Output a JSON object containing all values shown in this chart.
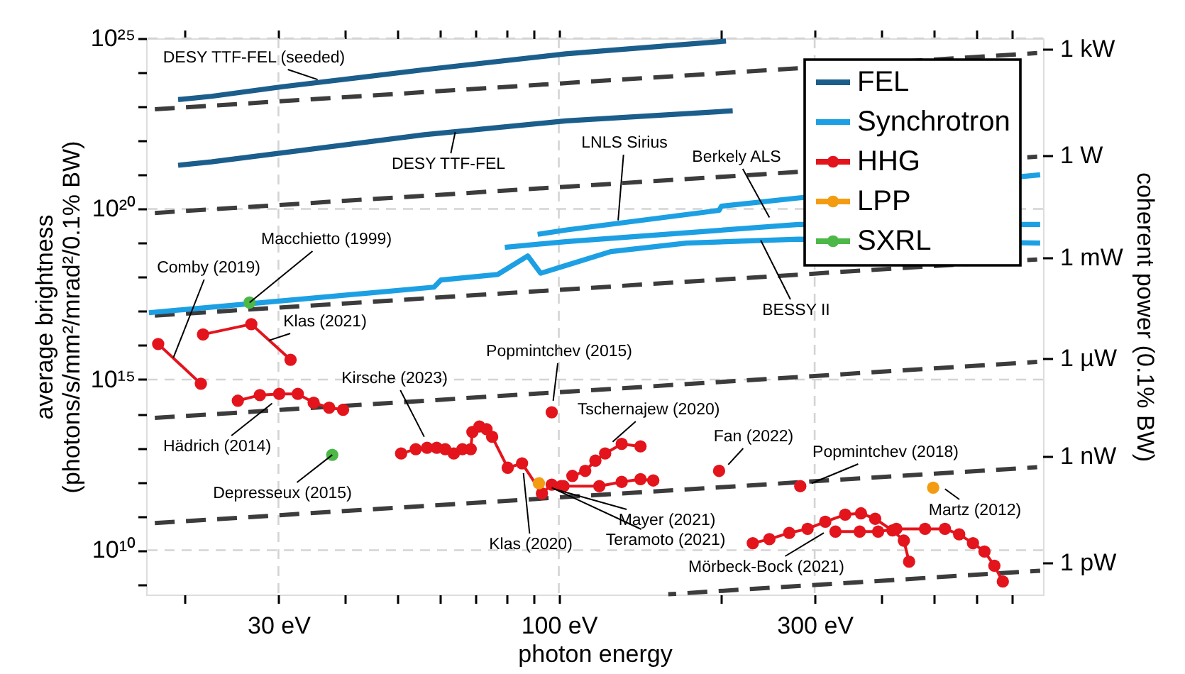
{
  "chart_data": {
    "type": "line",
    "xlabel": "photon energy",
    "ylabel": "average brightness\n(photons/s/mm²/mrad²/0.1% BW)",
    "y2label": "coherent power (0.1% BW)",
    "log": "xy",
    "grid": true,
    "legend": "top right",
    "xlim": [
      17,
      800
    ],
    "ylim": [
      500000000.0,
      1e+25
    ],
    "xticks": [
      {
        "value": 20,
        "label": null
      },
      {
        "value": 30,
        "label": "30 eV"
      },
      {
        "value": 40,
        "label": null
      },
      {
        "value": 50,
        "label": null
      },
      {
        "value": 60,
        "label": null
      },
      {
        "value": 70,
        "label": null
      },
      {
        "value": 80,
        "label": null
      },
      {
        "value": 90,
        "label": null
      },
      {
        "value": 100,
        "label": "100 eV"
      },
      {
        "value": 200,
        "label": null
      },
      {
        "value": 300,
        "label": "300 eV"
      },
      {
        "value": 400,
        "label": null
      },
      {
        "value": 500,
        "label": null
      },
      {
        "value": 600,
        "label": null
      },
      {
        "value": 700,
        "label": null
      }
    ],
    "yticks": [
      {
        "value": 1000000000.0,
        "label": null
      },
      {
        "value": 10000000000.0,
        "label": "10¹⁰"
      },
      {
        "value": 100000000000.0,
        "label": null
      },
      {
        "value": 1000000000000.0,
        "label": null
      },
      {
        "value": 10000000000000.0,
        "label": null
      },
      {
        "value": 100000000000000.0,
        "label": null
      },
      {
        "value": 1000000000000000.0,
        "label": "10¹⁵"
      },
      {
        "value": 1e+16,
        "label": null
      },
      {
        "value": 1e+17,
        "label": null
      },
      {
        "value": 1e+18,
        "label": null
      },
      {
        "value": 1e+19,
        "label": null
      },
      {
        "value": 1e+20,
        "label": "10²⁰"
      },
      {
        "value": 1e+21,
        "label": null
      },
      {
        "value": 1e+22,
        "label": null
      },
      {
        "value": 1e+23,
        "label": null
      },
      {
        "value": 1e+24,
        "label": null
      },
      {
        "value": 1e+25,
        "label": "10²⁵"
      }
    ],
    "series": [
      {
        "type": "line",
        "color": "#3c3c3c",
        "line_style": "dashed",
        "marker": "none",
        "x": [
          17.6,
          780
        ],
        "values": [
          8.3e+22,
          3.7e+24
        ]
      },
      {
        "type": "line",
        "color": "#3c3c3c",
        "line_style": "dashed",
        "marker": "none",
        "x": [
          17.6,
          780
        ],
        "values": [
          7.6e+19,
          3.4e+21
        ]
      },
      {
        "type": "line",
        "color": "#3c3c3c",
        "line_style": "dashed",
        "marker": "none",
        "x": [
          17.6,
          780
        ],
        "values": [
          7.5e+16,
          3.3e+18
        ]
      },
      {
        "type": "line",
        "color": "#3c3c3c",
        "line_style": "dashed",
        "marker": "none",
        "x": [
          17.6,
          780
        ],
        "values": [
          75000000000000.0,
          3300000000000000.0
        ]
      },
      {
        "type": "line",
        "color": "#3c3c3c",
        "line_style": "dashed",
        "marker": "none",
        "x": [
          17.6,
          780
        ],
        "values": [
          62000000000.0,
          2700000000000.0
        ]
      },
      {
        "type": "line",
        "color": "#3c3c3c",
        "line_style": "dashed",
        "marker": "none",
        "x": [
          160,
          790
        ],
        "values": [
          510000000.0,
          2500000000.0
        ]
      },
      {
        "name": "FEL",
        "type": "line",
        "color": "#1b5e8c",
        "line_style": "solid",
        "marker": "none",
        "x": [
          19.5,
          22.5,
          30.5,
          56.1,
          103,
          205
        ],
        "values": [
          1.6e+23,
          2e+23,
          3.8e+23,
          1.2e+24,
          3.5e+24,
          8.3e+24
        ]
      },
      {
        "type": "line",
        "color": "#1b5e8c",
        "line_style": "solid",
        "marker": "none",
        "x": [
          19.5,
          22.5,
          56.1,
          103,
          211
        ],
        "values": [
          1.9e+21,
          2.4e+21,
          1.5e+22,
          3.8e+22,
          7.5e+22
        ]
      },
      {
        "name": "Synchrotron",
        "type": "line",
        "color": "#1ca0e3",
        "line_style": "solid",
        "marker": "none",
        "x": [
          17.2,
          58.5,
          60.3,
          76.9,
          87.5,
          92.5,
          103,
          125,
          173,
          280,
          790
        ],
        "values": [
          9.1e+16,
          5.1e+17,
          8.3e+17,
          1.2e+18,
          4.2e+18,
          1.3e+18,
          2.2e+18,
          5.6e+18,
          1e+19,
          1.3e+19,
          1e+19
        ]
      },
      {
        "type": "line",
        "color": "#1ca0e3",
        "line_style": "solid",
        "marker": "none",
        "x": [
          79.3,
          103,
          280,
          790
        ],
        "values": [
          7.5e+18,
          1.1e+19,
          3.5e+19,
          3.5e+19
        ]
      },
      {
        "type": "line",
        "color": "#1ca0e3",
        "line_style": "solid",
        "marker": "none",
        "x": [
          91.3,
          103,
          199,
          201,
          280,
          790
        ],
        "values": [
          1.8e+19,
          2.4e+19,
          9.1e+19,
          1.2e+20,
          2.1e+20,
          1e+21
        ]
      },
      {
        "name": "HHG",
        "type": "line",
        "color": "#e3141c",
        "line_style": "solid",
        "marker": "circle",
        "x": [
          17.9,
          21.5
        ],
        "values": [
          1.1e+16,
          750000000000000.0
        ]
      },
      {
        "type": "line",
        "color": "#e3141c",
        "line_style": "solid",
        "marker": "circle",
        "x": [
          21.7,
          26.7,
          31.6
        ],
        "values": [
          2.1e+16,
          4.2e+16,
          3800000000000000.0
        ]
      },
      {
        "type": "line",
        "color": "#e3141c",
        "line_style": "solid",
        "marker": "circle",
        "x": [
          25.2,
          27.7,
          30.1,
          32.6,
          34.9,
          37.3,
          39.6
        ],
        "values": [
          240000000000000.0,
          350000000000000.0,
          380000000000000.0,
          380000000000000.0,
          210000000000000.0,
          150000000000000.0,
          130000000000000.0
        ]
      },
      {
        "type": "line",
        "color": "#e3141c",
        "line_style": "solid",
        "marker": "circle",
        "x": [
          50.8,
          54.1,
          56.8,
          59.2,
          61.4,
          63.7,
          66.1,
          68.5,
          69.0,
          71.1,
          73.3,
          75.1,
          80.3,
          85.4,
          93.0,
          97.0,
          101
        ],
        "values": [
          6800000000000.0,
          9100000000000.0,
          10000000000000.0,
          10000000000000.0,
          9100000000000.0,
          6800000000000.0,
          9100000000000.0,
          9100000000000.0,
          29000000000000.0,
          42000000000000.0,
          35000000000000.0,
          21000000000000.0,
          2600000000000.0,
          3500000000000.0,
          460000000000.0,
          830000000000.0,
          750000000000.0
        ]
      },
      {
        "type": "line",
        "color": "#e3141c",
        "line_style": "solid",
        "marker": "circle",
        "x": [
          106,
          112,
          117,
          122,
          131,
          142
        ],
        "values": [
          1500000000000.0,
          2100000000000.0,
          4200000000000.0,
          6800000000000.0,
          13000000000000.0,
          11000000000000.0
        ]
      },
      {
        "type": "line",
        "color": "#e3141c",
        "line_style": "solid",
        "marker": "circle",
        "x": [
          102,
          119,
          131,
          142,
          150
        ],
        "values": [
          750000000000.0,
          750000000000.0,
          1000000000000.0,
          1200000000000.0,
          1100000000000.0
        ]
      },
      {
        "type": "scatter",
        "color": "#e3141c",
        "marker": "circle",
        "x": [
          97.0,
          199,
          282
        ],
        "values": [
          110000000000000.0,
          2100000000000.0,
          750000000000.0
        ]
      },
      {
        "type": "line",
        "color": "#e3141c",
        "line_style": "solid",
        "marker": "circle",
        "x": [
          230,
          247,
          269,
          291,
          314,
          342,
          366,
          389,
          419,
          440,
          450
        ],
        "values": [
          16000000000.0,
          21000000000.0,
          32000000000.0,
          42000000000.0,
          68000000000.0,
          110000000000.0,
          120000000000.0,
          83000000000.0,
          38000000000.0,
          19000000000.0,
          4600000000.0
        ]
      },
      {
        "type": "line",
        "color": "#e3141c",
        "line_style": "solid",
        "marker": "circle",
        "x": [
          328,
          364,
          394,
          426,
          482,
          525,
          558,
          592,
          622,
          649,
          673
        ],
        "values": [
          35000000000.0,
          35000000000.0,
          35000000000.0,
          42000000000.0,
          42000000000.0,
          42000000000.0,
          29000000000.0,
          16000000000.0,
          9100000000.0,
          3500000000.0,
          1200000000.0
        ]
      },
      {
        "name": "LPP",
        "type": "scatter",
        "color": "#f39c12",
        "marker": "circle",
        "x": [
          91.8,
          499
        ],
        "values": [
          910000000000.0,
          680000000000.0
        ]
      },
      {
        "name": "SXRL",
        "type": "scatter",
        "color": "#4cb848",
        "marker": "circle",
        "x": [
          26.5,
          37.8
        ],
        "values": [
          1.8e+17,
          6200000000000.0
        ]
      }
    ],
    "annotations": [
      {
        "text": "DESY TTF-FEL (seeded)",
        "x": 35.5,
        "y": 6.2e+23
      },
      {
        "text": "DESY TTF-FEL",
        "x": 64.1,
        "y": 1.8e+22
      },
      {
        "text": "LNLS Sirius",
        "x": 129,
        "y": 4.6e+19
      },
      {
        "text": "Berkely ALS",
        "x": 247,
        "y": 5.6e+19
      },
      {
        "text": "BESSY II",
        "x": 238,
        "y": 1.2e+19
      },
      {
        "text": "Macchietto (1999)",
        "x": 26.5,
        "y": 1.8e+17
      },
      {
        "text": "Comby (2019)",
        "x": 19.1,
        "y": 4300000000000000.0
      },
      {
        "text": "Klas (2021)",
        "x": 28.8,
        "y": 1.4e+16
      },
      {
        "text": "Hädrich (2014)",
        "x": 29.2,
        "y": 200000000000000.0
      },
      {
        "text": "Depresseux (2015)",
        "x": 37.8,
        "y": 6200000000000.0
      },
      {
        "text": "Kirsche (2023)",
        "x": 56.1,
        "y": 21000000000000.0
      },
      {
        "text": "Popmintchev (2015)",
        "x": 97.6,
        "y": 240000000000000.0
      },
      {
        "text": "Tschernajew (2020)",
        "x": 126,
        "y": 15000000000000.0
      },
      {
        "text": "Fan (2022)",
        "x": 207,
        "y": 3200000000000.0
      },
      {
        "text": "Popmintchev (2018)",
        "x": 296,
        "y": 910000000000.0
      },
      {
        "text": "Mayer (2021)",
        "x": 98,
        "y": 620000000000.0
      },
      {
        "text": "Teramoto (2021)",
        "x": 97,
        "y": 680000000000.0
      },
      {
        "text": "Klas (2020)",
        "x": 85.9,
        "y": 1800000000000.0
      },
      {
        "text": "Martz (2012)",
        "x": 525,
        "y": 620000000000.0
      },
      {
        "text": "Mörbeck-Bock (2021)",
        "x": 312,
        "y": 32000000000.0
      },
      "1 kW",
      "1 W",
      "1 mW",
      "1 µW",
      "1 nW",
      "1 pW"
    ]
  }
}
